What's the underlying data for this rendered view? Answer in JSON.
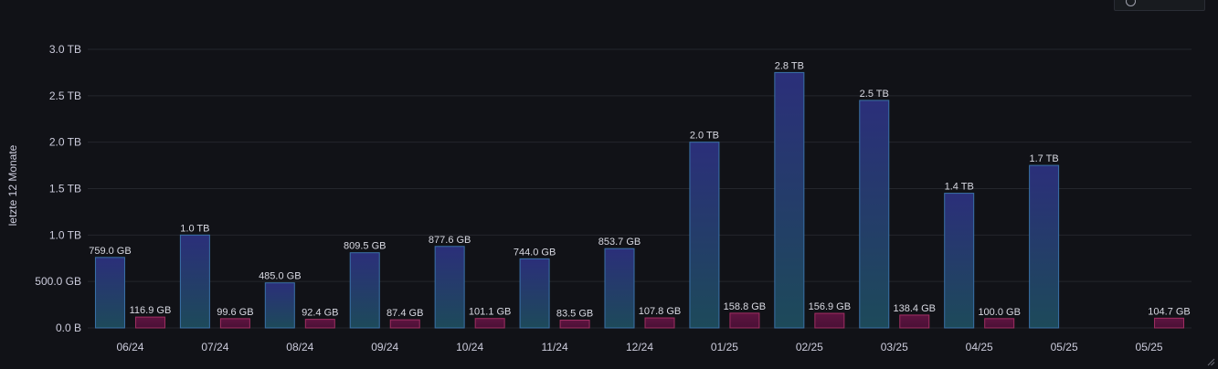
{
  "y_axis_title": "letzte 12 Monate",
  "chart_data": {
    "type": "bar",
    "ylabel": "letzte 12 Monate",
    "ylim": [
      0,
      3.0
    ],
    "unit": "TB",
    "yticks": [
      {
        "value": 0,
        "label": "0.0 B"
      },
      {
        "value": 0.5,
        "label": "500.0 GB"
      },
      {
        "value": 1.0,
        "label": "1.0 TB"
      },
      {
        "value": 1.5,
        "label": "1.5 TB"
      },
      {
        "value": 2.0,
        "label": "2.0 TB"
      },
      {
        "value": 2.5,
        "label": "2.5 TB"
      },
      {
        "value": 3.0,
        "label": "3.0 TB"
      }
    ],
    "categories": [
      "06/24",
      "07/24",
      "08/24",
      "09/24",
      "10/24",
      "11/24",
      "12/24",
      "01/25",
      "02/25",
      "03/25",
      "04/25",
      "05/25",
      "05/25"
    ],
    "grid": true,
    "legend": "none",
    "series": [
      {
        "color": "#2a6d86",
        "values": [
          0.759,
          1.0,
          0.485,
          0.8095,
          0.8776,
          0.744,
          0.8537,
          2.0,
          2.75,
          2.45,
          1.45,
          1.75,
          null
        ],
        "labels": [
          "759.0 GB",
          "1.0 TB",
          "485.0 GB",
          "809.5 GB",
          "877.6 GB",
          "744.0 GB",
          "853.7 GB",
          "2.0 TB",
          "2.8 TB",
          "2.5 TB",
          "1.4 TB",
          "1.7 TB",
          ""
        ]
      },
      {
        "color": "#8a1f4f",
        "values": [
          0.1169,
          0.0996,
          0.0924,
          0.0874,
          0.1011,
          0.0835,
          0.1078,
          0.1588,
          0.1569,
          0.1384,
          0.1,
          null,
          0.1047
        ],
        "labels": [
          "116.9 GB",
          "99.6 GB",
          "92.4 GB",
          "87.4 GB",
          "101.1 GB",
          "83.5 GB",
          "107.8 GB",
          "158.8 GB",
          "156.9 GB",
          "138.4 GB",
          "100.0 GB",
          "",
          "104.7 GB"
        ]
      }
    ]
  }
}
